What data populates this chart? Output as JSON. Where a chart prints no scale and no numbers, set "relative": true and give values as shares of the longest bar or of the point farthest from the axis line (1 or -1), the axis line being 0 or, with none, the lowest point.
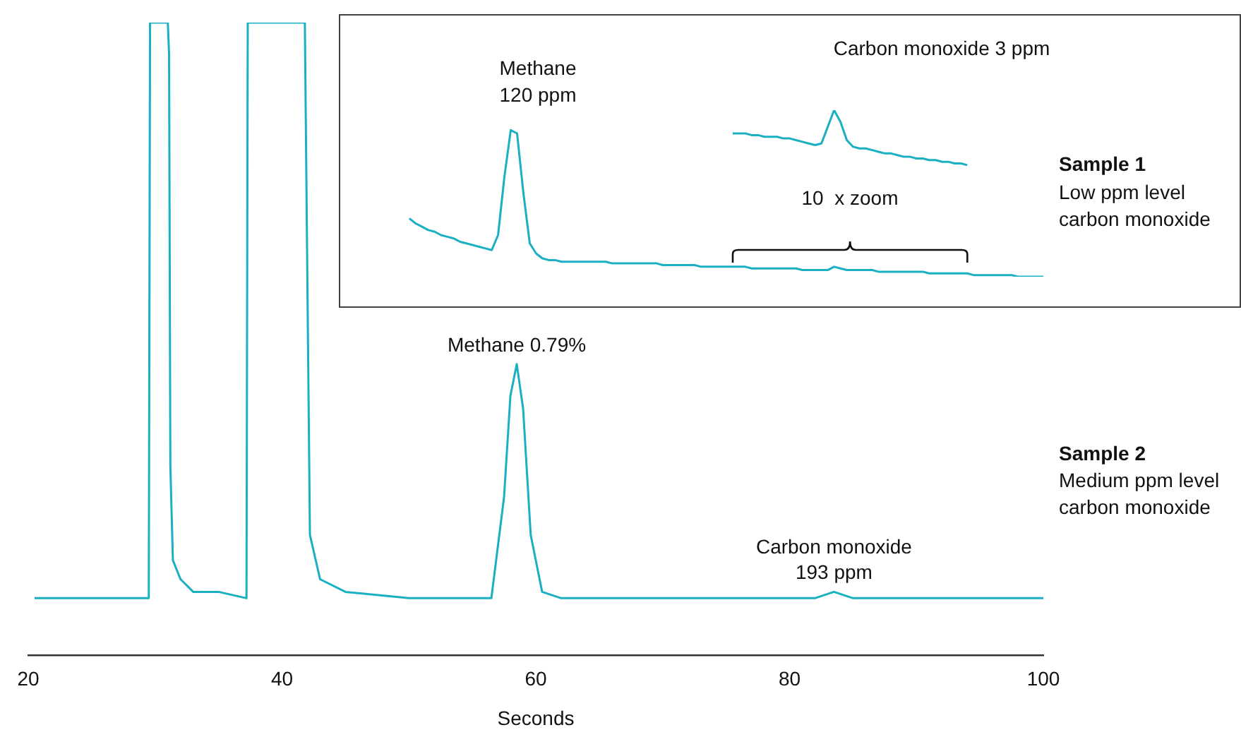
{
  "chart_data": [
    {
      "type": "line",
      "title": "Sample 2",
      "subtitle": "Medium ppm level\ncarbon monoxide",
      "xlabel": "Seconds",
      "relative": true,
      "xlim": [
        20,
        100
      ],
      "xticks": [
        20,
        40,
        60,
        80,
        100
      ],
      "grid": false,
      "legend": false,
      "marker": "none",
      "series": [
        {
          "color": "#1ab0c2",
          "x": [
            20.5,
            29.5,
            29.6,
            31.0,
            31.1,
            31.2,
            31.4,
            32.0,
            33.0,
            35.0,
            37.2,
            37.3,
            41.8,
            42.0,
            42.2,
            43.0,
            45.0,
            50.0,
            56.5,
            57.5,
            58.0,
            58.5,
            59.0,
            59.6,
            60.5,
            62.0,
            82.0,
            83.5,
            85.0,
            100.0
          ],
          "values": [
            0.09,
            0.09,
            1,
            1,
            0.95,
            0.3,
            0.15,
            0.12,
            0.1,
            0.1,
            0.09,
            1,
            1,
            0.59,
            0.19,
            0.12,
            0.1,
            0.09,
            0.09,
            0.25,
            0.41,
            0.46,
            0.39,
            0.19,
            0.1,
            0.09,
            0.09,
            0.1,
            0.09,
            0.09
          ]
        }
      ],
      "annotations": [
        {
          "text": "Methane 0.79%",
          "x": 58.5,
          "y": 0.46
        },
        {
          "text": "Carbon monoxide\n193 ppm",
          "x": 83.5,
          "y": 0.1
        }
      ]
    },
    {
      "type": "line",
      "relative": true,
      "grid": false,
      "legend": false,
      "marker": "none",
      "categories": [
        null,
        null,
        null,
        null,
        null,
        null,
        null,
        null,
        null,
        null,
        null,
        null,
        null,
        null,
        null,
        null,
        null,
        null,
        null,
        null,
        null,
        null,
        null,
        null,
        null,
        null,
        null,
        null,
        null,
        null,
        null,
        null,
        null,
        null,
        null,
        null,
        null,
        null,
        null,
        null,
        null,
        null,
        null,
        null,
        null,
        null,
        null,
        null,
        null,
        null,
        null,
        null,
        null,
        null,
        null,
        null,
        null,
        null,
        null,
        null,
        null,
        null,
        null,
        null,
        null,
        null,
        null,
        null,
        null,
        null,
        null,
        null,
        null,
        null,
        null,
        null,
        null,
        null,
        null,
        null,
        null,
        null,
        null,
        null,
        null,
        null,
        null,
        null,
        null,
        null,
        null,
        null,
        null,
        null,
        null,
        null,
        null,
        null,
        null,
        null,
        null,
        null,
        null,
        null,
        null,
        null,
        null,
        null,
        null,
        null,
        null
      ],
      "series": [
        {
          "color": "#1ab0c2",
          "values": [
            null,
            null,
            null,
            null,
            null,
            null,
            null,
            null,
            null,
            null,
            0.35,
            0.32,
            0.3,
            0.28,
            0.27,
            0.25,
            0.24,
            0.23,
            0.21,
            0.2,
            0.19,
            0.18,
            0.17,
            0.16,
            0.25,
            0.6,
            0.88,
            0.86,
            0.5,
            0.2,
            0.14,
            0.11,
            0.1,
            0.1,
            0.09,
            0.09,
            0.09,
            0.09,
            0.09,
            0.09,
            0.09,
            0.09,
            0.08,
            0.08,
            0.08,
            0.08,
            0.08,
            0.08,
            0.08,
            0.08,
            0.07,
            0.07,
            0.07,
            0.07,
            0.07,
            0.07,
            0.06,
            0.06,
            0.06,
            0.06,
            0.06,
            0.06,
            0.06,
            0.06,
            0.05,
            0.05,
            0.05,
            0.05,
            0.05,
            0.05,
            0.05,
            0.05,
            0.04,
            0.04,
            0.04,
            0.04,
            0.04,
            0.06,
            0.05,
            0.04,
            0.04,
            0.04,
            0.04,
            0.04,
            0.03,
            0.03,
            0.03,
            0.03,
            0.03,
            0.03,
            0.03,
            0.03,
            0.02,
            0.02,
            0.02,
            0.02,
            0.02,
            0.02,
            0.02,
            0.01,
            0.01,
            0.01,
            0.01,
            0.01,
            0.01,
            0.01,
            0,
            0,
            0,
            0,
            0
          ]
        },
        {
          "color": "#1ab0c2",
          "values": [
            null,
            null,
            null,
            null,
            null,
            null,
            null,
            null,
            null,
            null,
            null,
            null,
            null,
            null,
            null,
            null,
            null,
            null,
            null,
            null,
            null,
            null,
            null,
            null,
            null,
            null,
            null,
            null,
            null,
            null,
            null,
            null,
            null,
            null,
            null,
            null,
            null,
            null,
            null,
            null,
            null,
            null,
            null,
            null,
            null,
            null,
            null,
            null,
            null,
            null,
            null,
            null,
            null,
            null,
            null,
            null,
            null,
            null,
            null,
            null,
            null,
            0.86,
            0.86,
            0.86,
            0.85,
            0.85,
            0.84,
            0.84,
            0.84,
            0.83,
            0.83,
            0.82,
            0.81,
            0.8,
            0.79,
            0.8,
            0.9,
            1,
            0.93,
            0.82,
            0.78,
            0.77,
            0.77,
            0.76,
            0.75,
            0.74,
            0.74,
            0.73,
            0.72,
            0.72,
            0.71,
            0.71,
            0.7,
            0.7,
            0.69,
            0.69,
            0.68,
            0.68,
            0.67,
            null,
            null,
            null,
            null,
            null,
            null,
            null,
            null,
            null,
            null,
            null,
            null
          ]
        }
      ],
      "annotations": [
        "Methane\n120 ppm",
        "Carbon monoxide 3 ppm",
        "10  x zoom",
        "Sample 1",
        "Low ppm level\ncarbon monoxide"
      ]
    }
  ]
}
